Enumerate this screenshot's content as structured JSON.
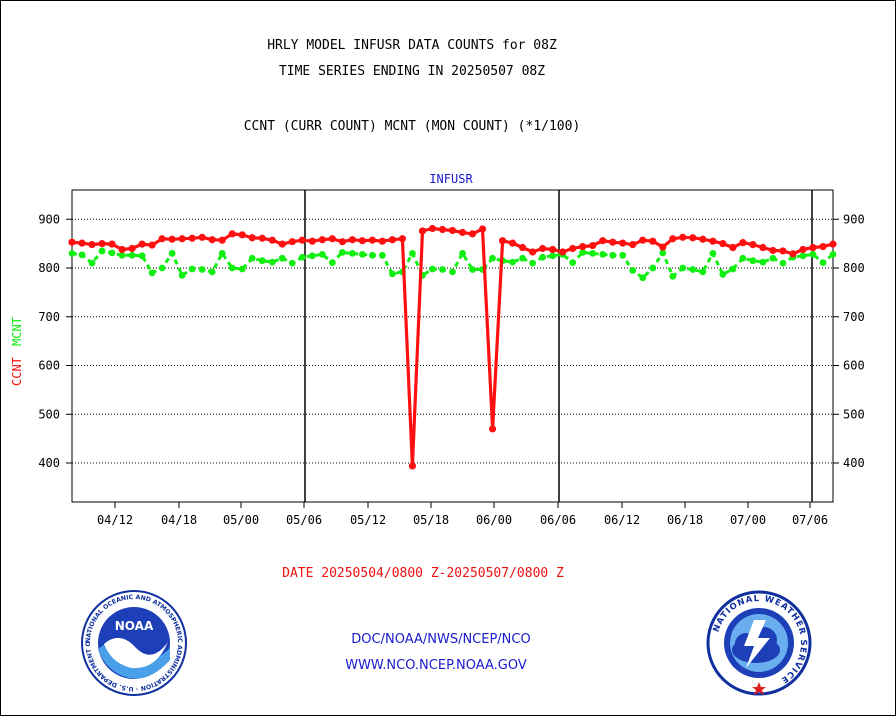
{
  "header": {
    "title_line1": "HRLY MODEL INFUSR DATA COUNTS for 08Z",
    "title_line2": "TIME SERIES ENDING IN 20250507 08Z",
    "subtitle": "CCNT (CURR COUNT) MCNT (MON COUNT) (*1/100)",
    "panel_title": "INFUSR"
  },
  "footer": {
    "date_range": "DATE 20250504/0800 Z-20250507/0800 Z",
    "line1": "DOC/NOAA/NWS/NCEP/NCO",
    "line2": "WWW.NCO.NCEP.NOAA.GOV"
  },
  "logos": {
    "noaa_text": "NOAA",
    "noaa_ring": "NATIONAL OCEANIC AND ATMOSPHERIC ADMINISTRATION · U.S. DEPARTMENT OF COMMERCE",
    "nws_ring": "NATIONAL WEATHER SERVICE"
  },
  "colors": {
    "ccnt": "#ff1010",
    "mcnt": "#11ee11",
    "text_blue": "#1a1ad0",
    "grid": "#000000"
  },
  "chart_data": {
    "type": "line",
    "ylabel_parts": [
      {
        "text": "CCNT",
        "color": "#ff1010"
      },
      {
        "text": "MCNT",
        "color": "#11ee11"
      }
    ],
    "x_tick_labels": [
      "04/12",
      "04/18",
      "05/00",
      "05/06",
      "05/12",
      "05/18",
      "06/00",
      "06/06",
      "06/12",
      "06/18",
      "07/00",
      "07/06"
    ],
    "y_ticks": [
      400,
      500,
      600,
      700,
      800,
      900
    ],
    "ylim": [
      320,
      960
    ],
    "grid": true,
    "series": [
      {
        "name": "CCNT",
        "values": [
          853,
          851,
          848,
          850,
          849,
          838,
          840,
          849,
          847,
          860,
          859,
          860,
          861,
          863,
          858,
          857,
          870,
          868,
          862,
          861,
          857,
          849,
          854,
          857,
          855,
          858,
          860,
          854,
          858,
          856,
          857,
          855,
          858,
          860,
          394,
          876,
          881,
          879,
          877,
          873,
          870,
          880,
          470,
          856,
          851,
          842,
          833,
          840,
          838,
          833,
          840,
          844,
          846,
          856,
          853,
          851,
          848,
          857,
          855,
          843,
          860,
          863,
          862,
          859,
          855,
          850,
          842,
          852,
          848,
          842,
          836,
          835,
          829,
          838,
          842,
          844,
          849
        ]
      },
      {
        "name": "MCNT",
        "values": [
          830,
          827,
          810,
          835,
          831,
          826,
          826,
          825,
          790,
          800,
          830,
          785,
          798,
          797,
          792,
          830,
          800,
          798,
          820,
          815,
          812,
          820,
          810,
          822,
          825,
          828,
          811,
          832,
          830,
          828,
          826,
          826,
          788,
          792,
          830,
          785,
          798,
          797,
          792,
          830,
          797,
          797,
          820,
          815,
          812,
          820,
          810,
          822,
          825,
          828,
          811,
          832,
          830,
          828,
          826,
          826,
          795,
          780,
          800,
          831,
          783,
          800,
          797,
          792,
          830,
          787,
          798,
          820,
          815,
          812,
          820,
          810,
          822,
          825,
          828,
          811,
          828
        ]
      }
    ]
  }
}
